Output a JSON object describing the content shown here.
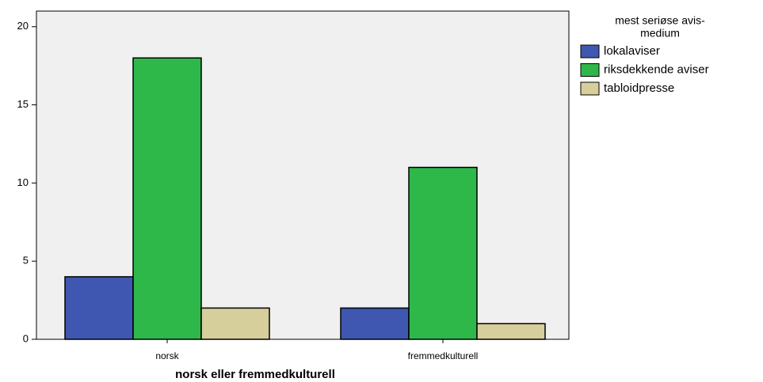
{
  "chart_data": {
    "type": "bar",
    "x_label": "norsk eller fremmedkulturell",
    "legend_title": [
      "mest seriøse avis-",
      "medium"
    ],
    "categories": [
      "norsk",
      "fremmedkulturell"
    ],
    "series": [
      {
        "name": "lokalaviser",
        "color": "#3f57b0",
        "values": [
          4,
          2
        ]
      },
      {
        "name": "riksdekkende aviser",
        "color": "#2fb84a",
        "values": [
          18,
          11
        ]
      },
      {
        "name": "tabloidpresse",
        "color": "#d6cf9b",
        "values": [
          2,
          1
        ]
      }
    ],
    "ylim": [
      0,
      21
    ],
    "yticks": [
      0,
      5,
      10,
      15,
      20
    ],
    "legend": "right"
  }
}
